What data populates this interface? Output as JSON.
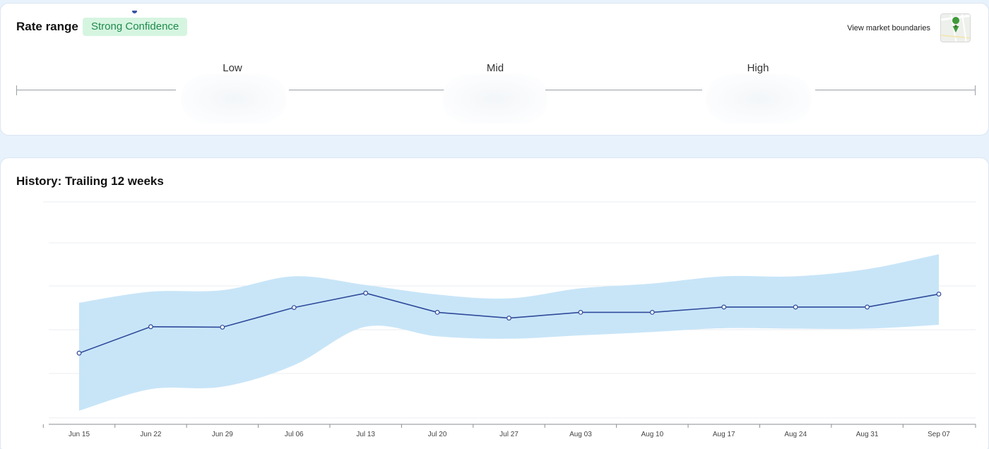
{
  "rate_range": {
    "title": "Rate range",
    "confidence_badge": "Strong Confidence",
    "map_link": "View market boundaries",
    "levels": [
      "Low",
      "Mid",
      "High"
    ]
  },
  "history": {
    "title": "History: Trailing 12 weeks"
  },
  "colors": {
    "line": "#2f4a9a",
    "band": "#c8e5f8",
    "badge_bg": "#d6f5e1",
    "badge_text": "#1f8a4c"
  },
  "chart_data": {
    "type": "line",
    "x": [
      "Jun 15",
      "Jun 22",
      "Jun 29",
      "Jul 06",
      "Jul 13",
      "Jul 20",
      "Jul 27",
      "Aug 03",
      "Aug 10",
      "Aug 17",
      "Aug 24",
      "Aug 31",
      "Sep 07"
    ],
    "series": [
      {
        "values": [
          1.55,
          2.1,
          2.09,
          2.5,
          2.8,
          2.4,
          2.28,
          2.4,
          2.4,
          2.51,
          2.51,
          2.51,
          2.78
        ]
      }
    ],
    "band": {
      "upper": [
        2.6,
        2.83,
        2.86,
        3.15,
        2.97,
        2.77,
        2.69,
        2.9,
        3.0,
        3.15,
        3.15,
        3.3,
        3.61
      ],
      "lower": [
        0.35,
        0.8,
        0.85,
        1.3,
        2.1,
        1.9,
        1.85,
        1.92,
        1.99,
        2.07,
        2.06,
        2.06,
        2.14
      ]
    },
    "ylim": [
      0.2,
      4.7
    ],
    "grid": true,
    "title": "",
    "xlabel": "",
    "ylabel": ""
  }
}
